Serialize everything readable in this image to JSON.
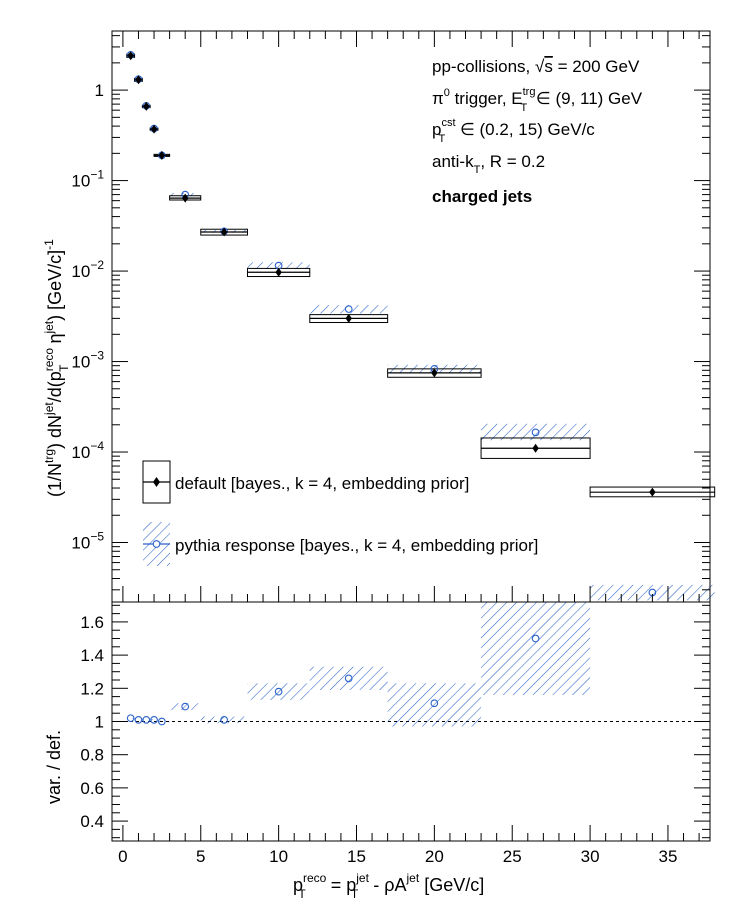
{
  "chart_data": [
    {
      "type": "scatter",
      "panel": "top",
      "ylabel_parts": {
        "a": "(1/N",
        "a_sup": "trg",
        "b": ") dN",
        "b_sup": "jet",
        "c": "/d(p",
        "c_sup": "reco",
        "c_sub": "T",
        "d": " η",
        "d_sup": "jet",
        "e": ") [GeV/c]",
        "e_sup": "-1"
      },
      "y_scale": "log",
      "ylim": [
        2.2e-06,
        4.5
      ],
      "xlim": [
        -0.7,
        37.7
      ],
      "y_tick_labels": [
        {
          "v": 1,
          "m": "1",
          "e": ""
        },
        {
          "v": 0.1,
          "m": "10",
          "e": "−1"
        },
        {
          "v": 0.01,
          "m": "10",
          "e": "−2"
        },
        {
          "v": 0.001,
          "m": "10",
          "e": "−3"
        },
        {
          "v": 0.0001,
          "m": "10",
          "e": "−4"
        },
        {
          "v": 1e-05,
          "m": "10",
          "e": "−5"
        }
      ],
      "annotations": [
        {
          "pre": "pp-collisions, ",
          "sqrt": "√",
          "s": "s",
          "post": " = 200 GeV"
        },
        {
          "pre": "π",
          "pre_sup": "0",
          "mid": " trigger, E",
          "mid_sup": "trg",
          "mid_sub": "T",
          "post": " ∈ (9, 11) GeV"
        },
        {
          "pre": "p",
          "pre_sup": "cst",
          "pre_sub": "T",
          "post": " ∈ (0.2, 15) GeV/c"
        },
        {
          "pre": "anti-k",
          "pre_sub": "T",
          "post": ", R = 0.2"
        },
        {
          "bold": "charged jets"
        }
      ],
      "legend_placement": "bottom-left",
      "series": [
        {
          "name": "default [bayes., k = 4, embedding prior]",
          "color": "#000000",
          "marker": "filled-diamond",
          "points": [
            {
              "x": 0.5,
              "y": 2.4,
              "xlo": 0.25,
              "xhi": 0.75,
              "ylo": 2.3,
              "yhi": 2.5
            },
            {
              "x": 1.0,
              "y": 1.3,
              "xlo": 0.75,
              "xhi": 1.25,
              "ylo": 1.25,
              "yhi": 1.35
            },
            {
              "x": 1.5,
              "y": 0.66,
              "xlo": 1.25,
              "xhi": 1.75,
              "ylo": 0.64,
              "yhi": 0.68
            },
            {
              "x": 2.0,
              "y": 0.37,
              "xlo": 1.75,
              "xhi": 2.25,
              "ylo": 0.36,
              "yhi": 0.38
            },
            {
              "x": 2.5,
              "y": 0.19,
              "xlo": 2.0,
              "xhi": 3.0,
              "ylo": 0.185,
              "yhi": 0.195
            },
            {
              "x": 4.0,
              "y": 0.064,
              "xlo": 3.0,
              "xhi": 5.0,
              "ylo": 0.061,
              "yhi": 0.068
            },
            {
              "x": 6.5,
              "y": 0.027,
              "xlo": 5.0,
              "xhi": 8.0,
              "ylo": 0.025,
              "yhi": 0.029
            },
            {
              "x": 10.0,
              "y": 0.0097,
              "xlo": 8.0,
              "xhi": 12.0,
              "ylo": 0.0087,
              "yhi": 0.0107
            },
            {
              "x": 14.5,
              "y": 0.003,
              "xlo": 12.0,
              "xhi": 17.0,
              "ylo": 0.0027,
              "yhi": 0.0033
            },
            {
              "x": 20.0,
              "y": 0.00075,
              "xlo": 17.0,
              "xhi": 23.0,
              "ylo": 0.00067,
              "yhi": 0.00083
            },
            {
              "x": 26.5,
              "y": 0.00011,
              "xlo": 23.0,
              "xhi": 30.0,
              "ylo": 8.5e-05,
              "yhi": 0.000143
            },
            {
              "x": 34.0,
              "y": 3.6e-05,
              "xlo": 30.0,
              "xhi": 38.0,
              "ylo": 3.2e-05,
              "yhi": 4.1e-05
            }
          ]
        },
        {
          "name": "pythia response [bayes., k = 4, embedding prior]",
          "color": "#2a62c9",
          "marker": "open-circle",
          "points": [
            {
              "x": 0.5,
              "y": 2.45,
              "xlo": 0.25,
              "xhi": 0.75,
              "ylo": 2.35,
              "yhi": 2.55
            },
            {
              "x": 1.0,
              "y": 1.32,
              "xlo": 0.75,
              "xhi": 1.25,
              "ylo": 1.27,
              "yhi": 1.37
            },
            {
              "x": 1.5,
              "y": 0.67,
              "xlo": 1.25,
              "xhi": 1.75,
              "ylo": 0.65,
              "yhi": 0.69
            },
            {
              "x": 2.0,
              "y": 0.375,
              "xlo": 1.75,
              "xhi": 2.25,
              "ylo": 0.365,
              "yhi": 0.385
            },
            {
              "x": 2.5,
              "y": 0.19,
              "xlo": 2.0,
              "xhi": 3.0,
              "ylo": 0.186,
              "yhi": 0.194
            },
            {
              "x": 4.0,
              "y": 0.07,
              "xlo": 3.0,
              "xhi": 5.0,
              "ylo": 0.067,
              "yhi": 0.073
            },
            {
              "x": 6.5,
              "y": 0.0275,
              "xlo": 5.0,
              "xhi": 8.0,
              "ylo": 0.0265,
              "yhi": 0.0285
            },
            {
              "x": 10.0,
              "y": 0.0115,
              "xlo": 8.0,
              "xhi": 12.0,
              "ylo": 0.0105,
              "yhi": 0.0125
            },
            {
              "x": 14.5,
              "y": 0.0038,
              "xlo": 12.0,
              "xhi": 17.0,
              "ylo": 0.0034,
              "yhi": 0.0042
            },
            {
              "x": 20.0,
              "y": 0.00083,
              "xlo": 17.0,
              "xhi": 23.0,
              "ylo": 0.00075,
              "yhi": 0.00092
            },
            {
              "x": 26.5,
              "y": 0.000165,
              "xlo": 23.0,
              "xhi": 30.0,
              "ylo": 0.000135,
              "yhi": 0.000205
            },
            {
              "x": 34.0,
              "y": 2.8e-06,
              "xlo": 30.0,
              "xhi": 38.0,
              "ylo": 2.3e-06,
              "yhi": 3.4e-06
            }
          ]
        }
      ]
    },
    {
      "type": "scatter",
      "panel": "bottom",
      "ylabel": "var. / def.",
      "xlabel_parts": {
        "a": "p",
        "a_sup": "reco",
        "a_sub": "T",
        "b": " = p",
        "b_sup": "jet",
        "b_sub": "T",
        "c": " - ρA",
        "c_sup": "jet",
        "d": " [GeV/c]"
      },
      "ylim": [
        0.28,
        1.72
      ],
      "xlim": [
        -0.7,
        37.7
      ],
      "x_ticks": [
        0,
        5,
        10,
        15,
        20,
        25,
        30,
        35
      ],
      "x_tick_labels": [
        "0",
        "5",
        "10",
        "15",
        "20",
        "25",
        "30",
        "35"
      ],
      "y_ticks": [
        0.4,
        0.6,
        0.8,
        1.0,
        1.2,
        1.4,
        1.6
      ],
      "y_tick_labels": [
        "0.4",
        "0.6",
        "0.8",
        "1",
        "1.2",
        "1.4",
        "1.6"
      ],
      "reference_line": 1.0,
      "series": [
        {
          "name": "pythia response [bayes., k = 4, embedding prior]",
          "color": "#2a62c9",
          "marker": "open-circle",
          "points": [
            {
              "x": 0.5,
              "y": 1.02,
              "xlo": 0.25,
              "xhi": 0.75,
              "ylo": 1.015,
              "yhi": 1.025
            },
            {
              "x": 1.0,
              "y": 1.01,
              "xlo": 0.75,
              "xhi": 1.25,
              "ylo": 1.005,
              "yhi": 1.015
            },
            {
              "x": 1.5,
              "y": 1.01,
              "xlo": 1.25,
              "xhi": 1.75,
              "ylo": 1.005,
              "yhi": 1.015
            },
            {
              "x": 2.0,
              "y": 1.01,
              "xlo": 1.75,
              "xhi": 2.25,
              "ylo": 1.005,
              "yhi": 1.015
            },
            {
              "x": 2.5,
              "y": 1.0,
              "xlo": 2.0,
              "xhi": 3.0,
              "ylo": 0.995,
              "yhi": 1.005
            },
            {
              "x": 4.0,
              "y": 1.09,
              "xlo": 3.0,
              "xhi": 5.0,
              "ylo": 1.07,
              "yhi": 1.11
            },
            {
              "x": 6.5,
              "y": 1.01,
              "xlo": 5.0,
              "xhi": 8.0,
              "ylo": 0.99,
              "yhi": 1.03
            },
            {
              "x": 10.0,
              "y": 1.18,
              "xlo": 8.0,
              "xhi": 12.0,
              "ylo": 1.13,
              "yhi": 1.23
            },
            {
              "x": 14.5,
              "y": 1.26,
              "xlo": 12.0,
              "xhi": 17.0,
              "ylo": 1.19,
              "yhi": 1.33
            },
            {
              "x": 20.0,
              "y": 1.11,
              "xlo": 17.0,
              "xhi": 23.0,
              "ylo": 0.97,
              "yhi": 1.23
            },
            {
              "x": 26.5,
              "y": 1.5,
              "xlo": 23.0,
              "xhi": 30.0,
              "ylo": 1.16,
              "yhi": 1.72
            }
          ]
        }
      ]
    }
  ]
}
